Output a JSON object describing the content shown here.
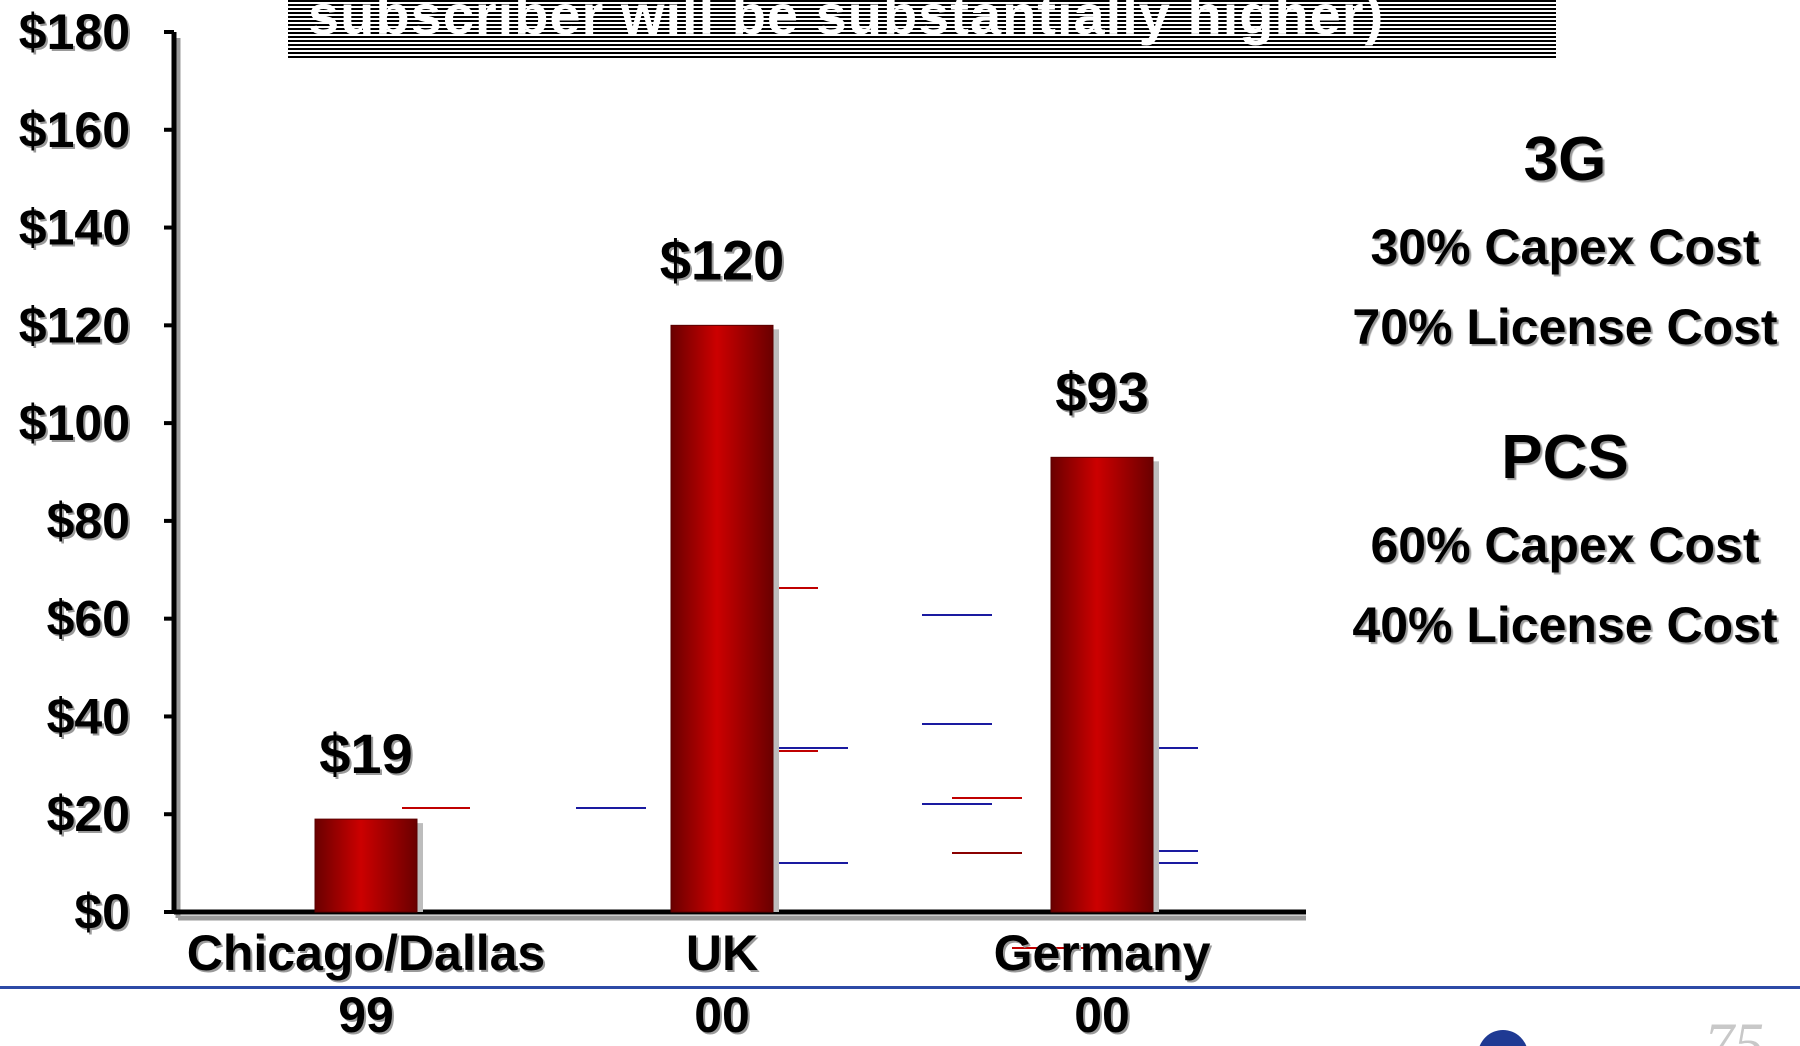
{
  "title_fragment": "subscriber will be substantially higher)",
  "chart_data": {
    "type": "bar",
    "categories": [
      "Chicago/Dallas\n99",
      "UK\n00",
      "Germany\n00"
    ],
    "values": [
      19,
      120,
      93
    ],
    "value_labels": [
      "$19",
      "$120",
      "$93"
    ],
    "ylim": [
      0,
      180
    ],
    "y_ticks": [
      0,
      20,
      40,
      60,
      80,
      100,
      120,
      140,
      160,
      180
    ],
    "y_tick_labels": [
      "$0",
      "$20",
      "$40",
      "$60",
      "$80",
      "$100",
      "$120",
      "$140",
      "$160",
      "$180"
    ],
    "grid": false,
    "bar_color": "#cc0000"
  },
  "side_panel": {
    "g3_heading": "3G",
    "g3_capex": "30% Capex Cost",
    "g3_license": "70% License Cost",
    "pcs_heading": "PCS",
    "pcs_capex": "60% Capex Cost",
    "pcs_license": "40% License Cost"
  },
  "colors": {
    "bar": "#cc0000",
    "bar_dark": "#6a0000",
    "axis": "#000000",
    "rule": "#2d4aa6",
    "blue_marks": "#1a1aa0",
    "red_marks": "#c00000"
  }
}
